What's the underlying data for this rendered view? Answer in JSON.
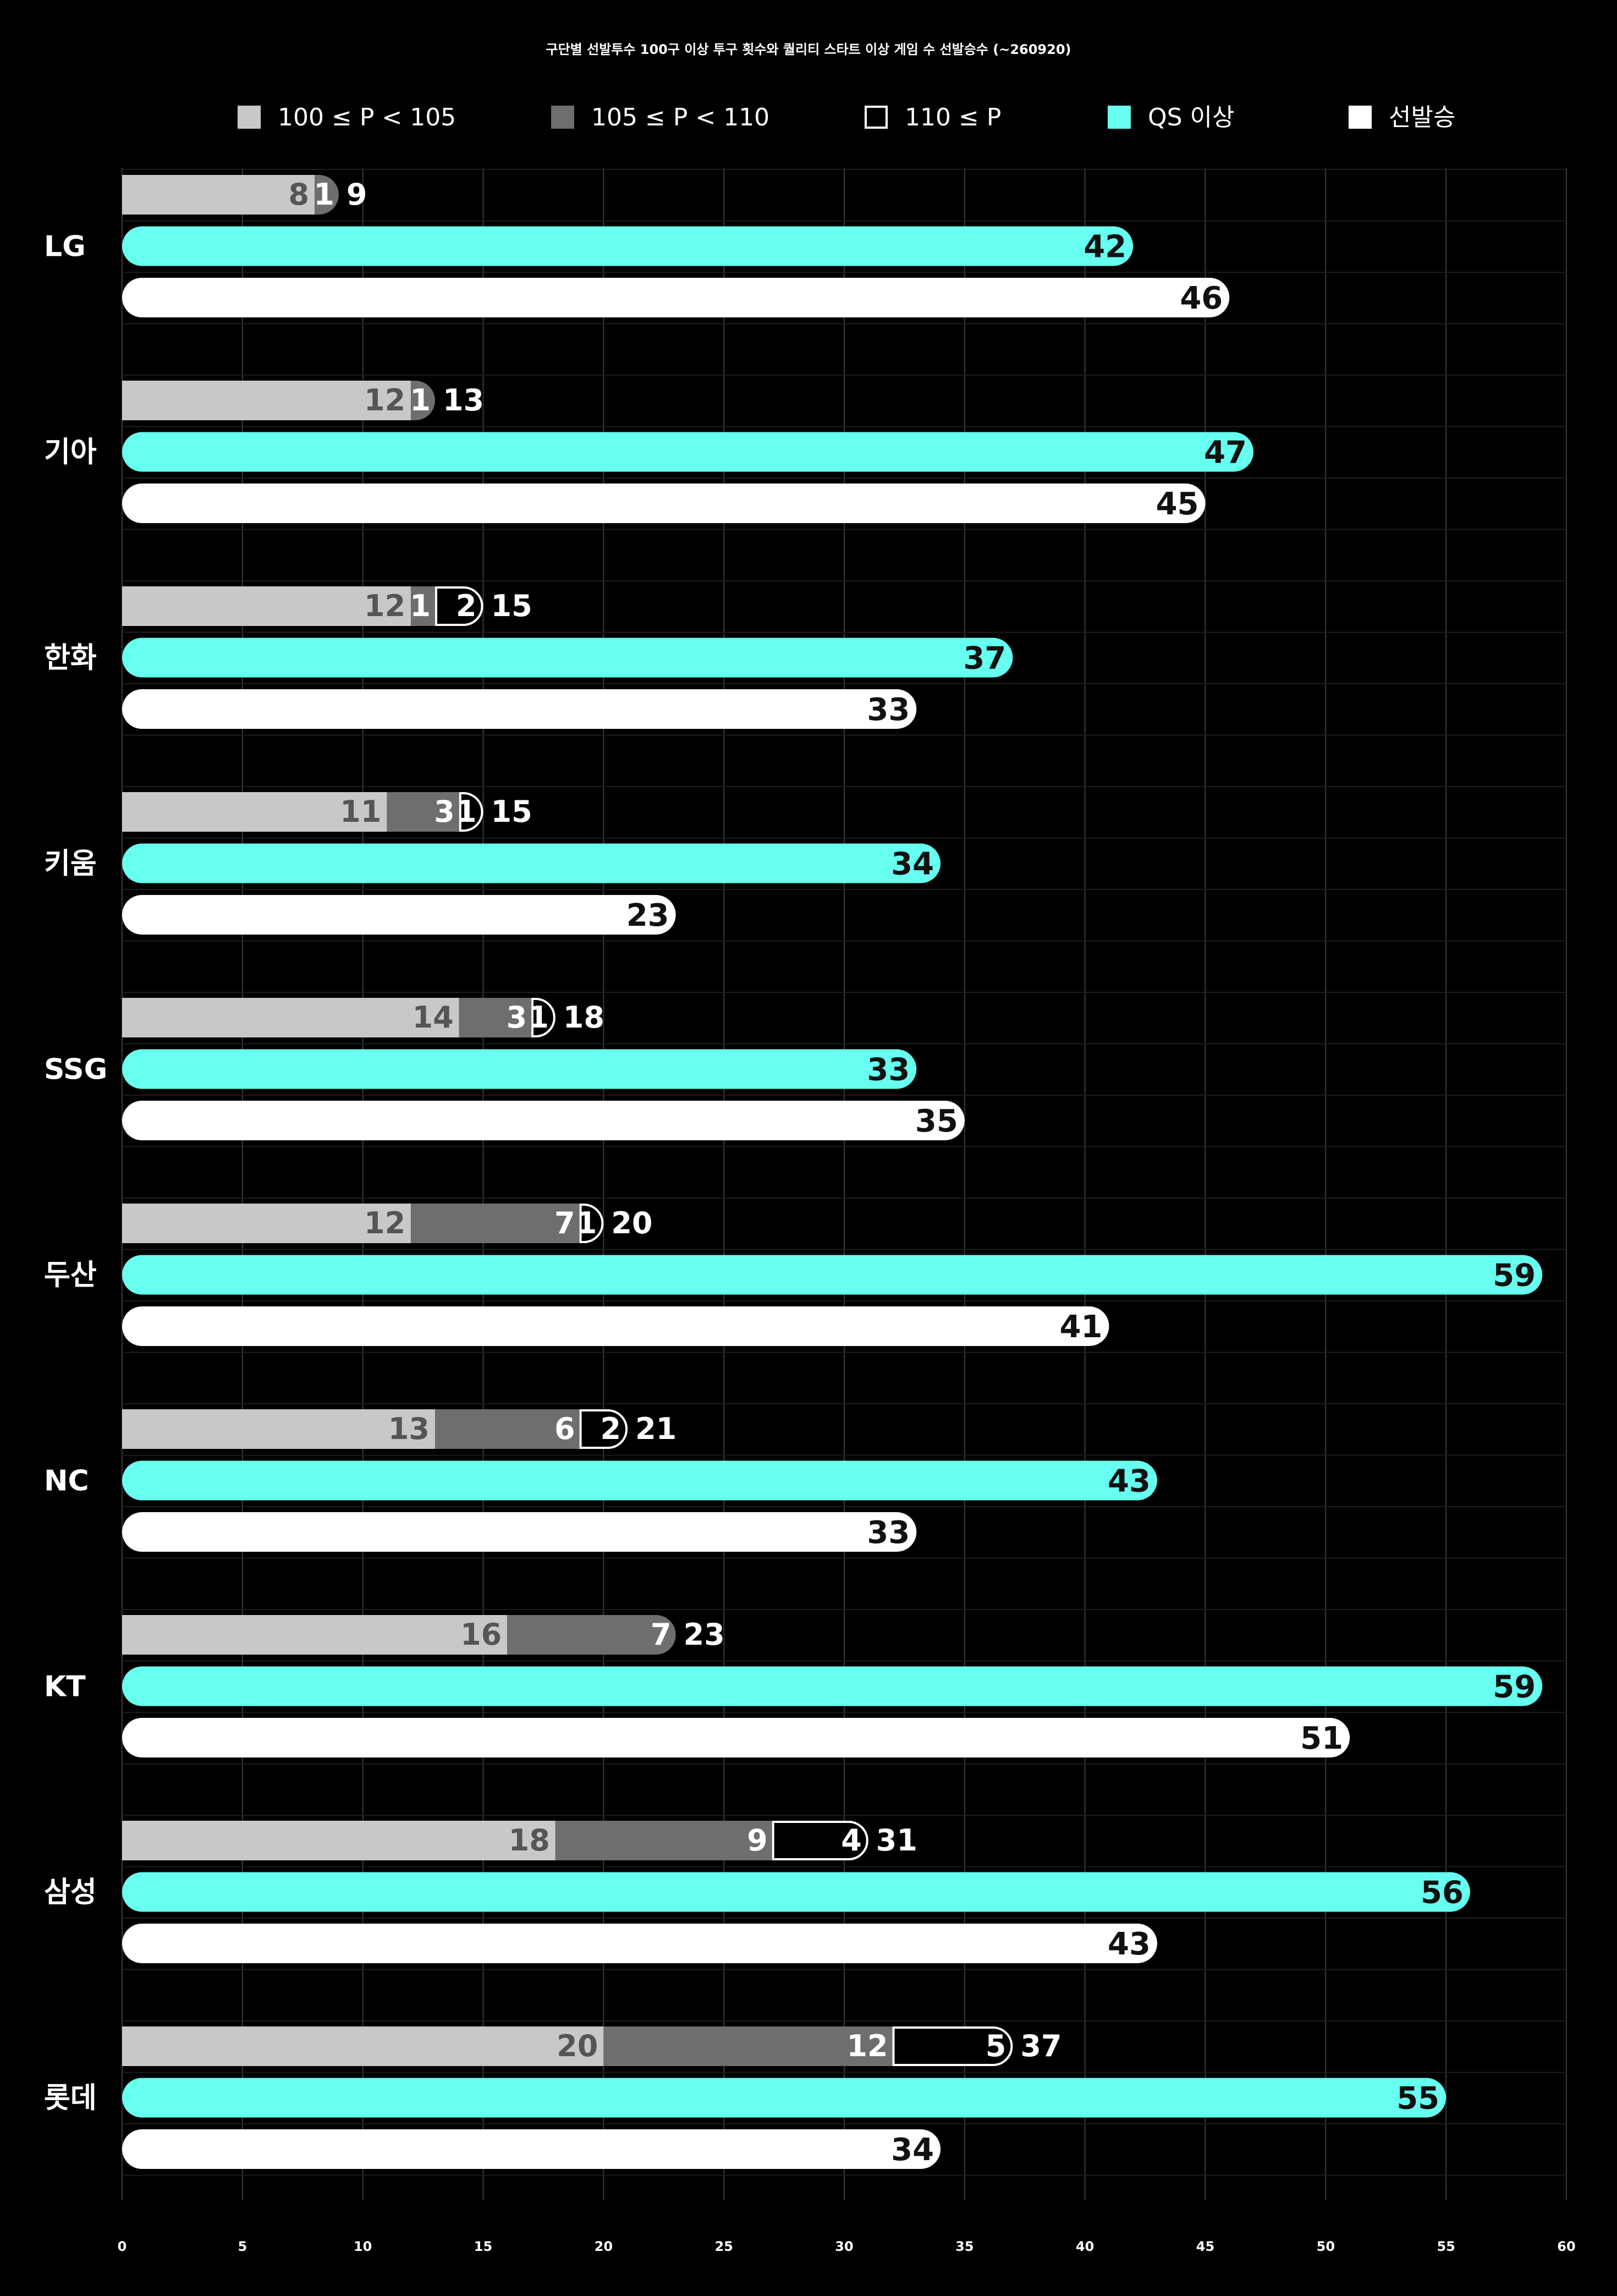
{
  "chart_data": {
    "type": "bar",
    "title": "구단별 선발투수 100구 이상 투구 횟수와 퀄리티 스타트 이상 게임 수 선발승수 (~260920)",
    "xlim": [
      0,
      60
    ],
    "x_ticks": [
      0,
      5,
      10,
      15,
      20,
      25,
      30,
      35,
      40,
      45,
      50,
      55,
      60
    ],
    "grid": true,
    "legend_position": "top",
    "legend": [
      {
        "label": "100 ≤ P < 105",
        "color": "#c8c8c8",
        "style": "filled"
      },
      {
        "label": "105 ≤ P < 110",
        "color": "#6e6e6e",
        "style": "filled"
      },
      {
        "label": "110 ≤ P",
        "color": "#000000",
        "style": "outlined"
      },
      {
        "label": "QS 이상",
        "color": "#66fff0",
        "style": "filled"
      },
      {
        "label": "선발승",
        "color": "#ffffff",
        "style": "filled"
      }
    ],
    "categories": [
      "LG",
      "기아",
      "한화",
      "키움",
      "SSG",
      "두산",
      "NC",
      "KT",
      "삼성",
      "롯데"
    ],
    "series": [
      {
        "name": "100 ≤ P < 105",
        "values": [
          8,
          12,
          12,
          11,
          14,
          12,
          13,
          16,
          18,
          20
        ]
      },
      {
        "name": "105 ≤ P < 110",
        "values": [
          1,
          1,
          1,
          3,
          3,
          7,
          6,
          7,
          9,
          12
        ]
      },
      {
        "name": "110 ≤ P",
        "values": [
          0,
          0,
          2,
          1,
          1,
          1,
          2,
          0,
          4,
          5
        ]
      },
      {
        "name": "QS 이상",
        "values": [
          42,
          47,
          37,
          34,
          33,
          59,
          43,
          59,
          56,
          55
        ]
      },
      {
        "name": "선발승",
        "values": [
          46,
          45,
          33,
          23,
          35,
          41,
          33,
          51,
          43,
          34
        ]
      }
    ],
    "pitch_totals": [
      9,
      13,
      15,
      15,
      18,
      20,
      21,
      23,
      31,
      37
    ]
  }
}
